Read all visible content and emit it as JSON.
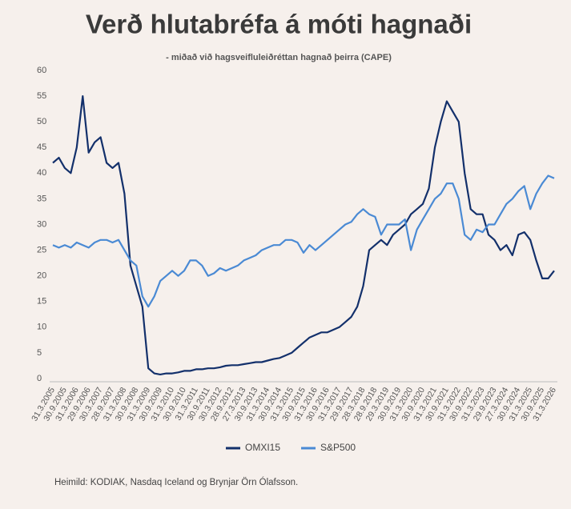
{
  "chart_data": {
    "type": "line",
    "title": "Verð hlutabréfa á móti hagnaði",
    "subtitle": "- miðað við hagsveifluleiðréttan hagnað þeirra (CAPE)",
    "source": "Heimild: KODIAK, Nasdaq Iceland og Brynjar Örn Ólafsson.",
    "categories": [
      "31.3.2005",
      null,
      "30.9.2005",
      null,
      "31.3.2006",
      null,
      "29.9.2006",
      null,
      "30.3.2007",
      null,
      "28.9.2007",
      null,
      "31.3.2008",
      null,
      "30.9.2008",
      null,
      "31.3.2009",
      null,
      "30.9.2009",
      null,
      "31.3.2010",
      null,
      "30.9.2010",
      null,
      "31.3.2011",
      null,
      "30.9.2011",
      null,
      "30.3.2012",
      null,
      "28.9.2012",
      null,
      "27.3.2013",
      null,
      "30.9.2013",
      null,
      "31.3.2014",
      null,
      "30.9.2014",
      null,
      "31.3.2015",
      null,
      "30.9.2015",
      null,
      "31.3.2016",
      null,
      "30.9.2016",
      null,
      "31.3.2017",
      null,
      "29.9.2017",
      null,
      "28.3.2018",
      null,
      "28.9.2018",
      null,
      "29.3.2019",
      null,
      "30.9.2019",
      null,
      "31.3.2020",
      null,
      "30.9.2020",
      null,
      "31.3.2021",
      null,
      "30.9.2021",
      null,
      "31.3.2022",
      null,
      "30.9.2022",
      null,
      "31.3.2023",
      null,
      "29.9.2023",
      null,
      "27.3.2024",
      null,
      "30.9.2024",
      null,
      "31.3.2025",
      null,
      "30.9.2025",
      null,
      "31.3.2026"
    ],
    "series": [
      {
        "name": "OMXI15",
        "color": "#13306b",
        "values": [
          42,
          43,
          41,
          40,
          45,
          55,
          44,
          46,
          47,
          42,
          41,
          42,
          36,
          22,
          18,
          14,
          2,
          1,
          0.8,
          1,
          1,
          1.2,
          1.5,
          1.5,
          1.8,
          1.8,
          2,
          2,
          2.2,
          2.5,
          2.6,
          2.6,
          2.8,
          3,
          3.2,
          3.2,
          3.5,
          3.8,
          4,
          4.5,
          5,
          6,
          7,
          8,
          8.5,
          9,
          9,
          9.5,
          10,
          11,
          12,
          14,
          18,
          25,
          26,
          27,
          26,
          28,
          29,
          30,
          32,
          33,
          34,
          37,
          45,
          50,
          54,
          52,
          50,
          40,
          33,
          32,
          32,
          28,
          27,
          25,
          26,
          24,
          28,
          28.5,
          27,
          23,
          19.5,
          19.5,
          21
        ]
      },
      {
        "name": "S&P500",
        "color": "#4a8ad4",
        "values": [
          26,
          25.5,
          26,
          25.5,
          26.5,
          26,
          25.5,
          26.5,
          27,
          27,
          26.5,
          27,
          25,
          23,
          22,
          16,
          14,
          16,
          19,
          20,
          21,
          20,
          21,
          23,
          23,
          22,
          20,
          20.5,
          21.5,
          21,
          21.5,
          22,
          23,
          23.5,
          24,
          25,
          25.5,
          26,
          26,
          27,
          27,
          26.5,
          24.5,
          26,
          25,
          26,
          27,
          28,
          29,
          30,
          30.5,
          32,
          33,
          32,
          31.5,
          28,
          30,
          30,
          30,
          31,
          25,
          29,
          31,
          33,
          35,
          36,
          38,
          38,
          35,
          28,
          27,
          29,
          28.5,
          30,
          30,
          32,
          34,
          35,
          36.5,
          37.5,
          33,
          36,
          38,
          39.5,
          39
        ]
      }
    ],
    "ylim": [
      0,
      60
    ],
    "yticks": [
      0,
      5,
      10,
      15,
      20,
      25,
      30,
      35,
      40,
      45,
      50,
      55,
      60
    ],
    "grid": false,
    "legend": "bottom"
  }
}
